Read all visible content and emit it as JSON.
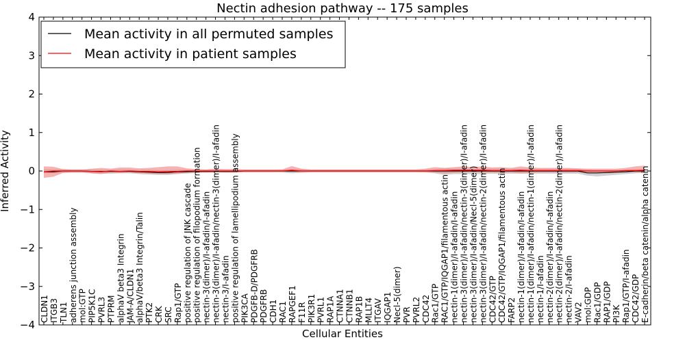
{
  "chart_data": {
    "type": "line",
    "title": "Nectin adhesion pathway -- 175 samples",
    "xlabel": "Cellular Entities",
    "ylabel": "Inferred Activity",
    "ylim": [
      -4,
      4
    ],
    "yticks": [
      -4,
      -3,
      -2,
      -1,
      0,
      1,
      2,
      3,
      4
    ],
    "ytick_labels": [
      "−4",
      "−3",
      "−2",
      "−1",
      "0",
      "1",
      "2",
      "3",
      "4"
    ],
    "grid": false,
    "legend_position": "top-left",
    "colors": {
      "permuted_line": "#000000",
      "permuted_band": "#b0b0b0",
      "patient_line": "#ff0000",
      "patient_band": "#f08080"
    },
    "categories": [
      "CLDN1",
      "ITGB3",
      "TLN1",
      "adherens junction assembly",
      "mol:GTP",
      "PIP5K1C",
      "PVRL3",
      "PTPRM",
      "alphaV beta3 Integrin",
      "JAM-A/CLDN1",
      "alphaV/beta3 Integrin/Talin",
      "PTK2",
      "CRK",
      "SRC",
      "Rap1/GTP",
      "positive regulation of JNK cascade",
      "positive regulation of filopodium formation",
      "nectin-3(dimer)/I-afadin/I-afadin",
      "nectin-3(dimer)/I-afadin/nectin-3(dimer)/I-afadin",
      "nectin-3/I-afadin",
      "positive regulation of lamellipodium assembly",
      "PIK3CA",
      "PDGFB-D/PDGFRB",
      "PDGFRB",
      "CDH1",
      "RAC1",
      "RAPGEF1",
      "F11R",
      "PIK3R1",
      "PVRL1",
      "RAP1A",
      "CTNNA1",
      "CTNNB1",
      "RAP1B",
      "MLLT4",
      "ITGAV",
      "IQGAP1",
      "Necl-5(dimer)",
      "PVR",
      "PVRL2",
      "CDC42",
      "Rac1/GTP",
      "RAC1/GTP/IQGAP1/filamentous actin",
      "nectin-1(dimer)/I-afadin/I-afadin",
      "nectin-3(dimer)/I-afadin/nectin-3(dimer)/I-afadin",
      "nectin-3(dimer)/I-afadin/Necl-5(dimer)",
      "nectin-3(dimer)/I-afadin/nectin-2(dimer)/I-afadin",
      "CDC42/GTP",
      "CDC42/GTP/IQGAP1/filamentous actin",
      "FARP2",
      "nectin-1(dimer)/I-afadin/I-afadin",
      "nectin-1(dimer)/I-afadin/nectin-1(dimer)/I-afadin",
      "nectin-1/I-afadin",
      "nectin-2(dimer)/I-afadin/I-afadin",
      "nectin-2(dimer)/I-afadin/nectin-2(dimer)/I-afadin",
      "nectin-2/I-afadin",
      "VAV2",
      "mol:GDP",
      "Rac1/GDP",
      "RAP1/GDP",
      "PI3K",
      "Rap1/GTP/I-afadin",
      "CDC42/GDP",
      "E-cadherin/beta catenin/alpha catenin"
    ],
    "series": [
      {
        "name": "Mean activity in all permuted samples",
        "color": "#000000",
        "values": [
          -0.02,
          -0.02,
          0,
          0,
          0,
          -0.01,
          -0.01,
          -0.01,
          -0.01,
          -0.01,
          -0.02,
          -0.03,
          -0.04,
          -0.04,
          -0.02,
          -0.02,
          -0.01,
          -0.01,
          -0.01,
          -0.01,
          -0.01,
          0,
          0,
          0,
          0,
          0,
          0,
          0,
          0,
          0,
          0,
          0,
          0,
          0,
          0,
          0,
          0,
          0,
          0,
          0,
          0,
          0,
          0,
          0,
          0,
          0,
          0,
          0,
          0,
          0,
          0,
          0,
          0,
          0,
          0,
          0,
          0,
          -0.05,
          -0.05,
          -0.04,
          -0.03,
          -0.02,
          0,
          0
        ],
        "lower": [
          -0.06,
          -0.06,
          -0.05,
          -0.05,
          -0.05,
          -0.06,
          -0.07,
          -0.07,
          -0.06,
          -0.06,
          -0.08,
          -0.09,
          -0.1,
          -0.1,
          -0.08,
          -0.07,
          -0.05,
          -0.05,
          -0.04,
          -0.05,
          -0.05,
          -0.04,
          -0.04,
          -0.04,
          -0.04,
          -0.04,
          -0.06,
          -0.05,
          -0.04,
          -0.04,
          -0.04,
          -0.04,
          -0.04,
          -0.04,
          -0.04,
          -0.04,
          -0.04,
          -0.04,
          -0.04,
          -0.04,
          -0.04,
          -0.06,
          -0.1,
          -0.08,
          -0.08,
          -0.08,
          -0.08,
          -0.07,
          -0.07,
          -0.07,
          -0.07,
          -0.07,
          -0.07,
          -0.07,
          -0.07,
          -0.07,
          -0.07,
          -0.12,
          -0.14,
          -0.12,
          -0.1,
          -0.08,
          -0.06,
          -0.04
        ],
        "upper": [
          0.04,
          0.04,
          0.05,
          0.05,
          0.05,
          0.04,
          0.03,
          0.03,
          0.04,
          0.04,
          0.03,
          0.03,
          0.02,
          0.02,
          0.03,
          0.03,
          0.04,
          0.04,
          0.04,
          0.04,
          0.04,
          0.04,
          0.04,
          0.04,
          0.04,
          0.04,
          0.05,
          0.05,
          0.04,
          0.04,
          0.04,
          0.04,
          0.04,
          0.04,
          0.04,
          0.04,
          0.04,
          0.04,
          0.04,
          0.04,
          0.04,
          0.05,
          0.07,
          0.06,
          0.06,
          0.06,
          0.06,
          0.06,
          0.06,
          0.06,
          0.06,
          0.06,
          0.06,
          0.06,
          0.06,
          0.06,
          0.06,
          0.04,
          0.03,
          0.03,
          0.03,
          0.03,
          0.04,
          0.04
        ]
      },
      {
        "name": "Mean activity in patient samples",
        "color": "#ff0000",
        "values": [
          -0.02,
          0,
          0,
          0,
          0,
          -0.01,
          -0.02,
          0,
          -0.01,
          0,
          -0.01,
          -0.01,
          -0.02,
          -0.01,
          -0.01,
          0,
          0,
          0,
          0,
          0,
          0,
          0,
          0,
          0,
          0,
          0,
          0.02,
          0,
          0,
          0,
          0,
          0,
          0,
          0,
          0,
          0,
          0,
          0,
          0,
          0,
          0,
          0.01,
          0.01,
          0.02,
          0.02,
          0.02,
          0.02,
          0.01,
          0.01,
          0.01,
          0.02,
          0.01,
          0.01,
          0.01,
          0.01,
          0.01,
          0.01,
          0,
          0,
          0,
          0,
          0.01,
          0.01,
          0.02
        ],
        "lower": [
          -0.18,
          -0.15,
          -0.05,
          -0.03,
          -0.03,
          -0.06,
          -0.08,
          -0.04,
          -0.05,
          -0.03,
          -0.06,
          -0.07,
          -0.08,
          -0.08,
          -0.07,
          -0.03,
          -0.03,
          -0.03,
          -0.03,
          -0.03,
          -0.03,
          -0.02,
          -0.02,
          -0.02,
          -0.02,
          -0.02,
          -0.03,
          -0.03,
          -0.02,
          -0.02,
          -0.02,
          -0.02,
          -0.02,
          -0.02,
          -0.02,
          -0.02,
          -0.02,
          -0.02,
          -0.02,
          -0.02,
          -0.03,
          -0.04,
          -0.06,
          -0.05,
          -0.04,
          -0.03,
          -0.04,
          -0.04,
          -0.05,
          -0.04,
          -0.06,
          -0.05,
          -0.04,
          -0.04,
          -0.04,
          -0.04,
          -0.04,
          -0.03,
          -0.03,
          -0.03,
          -0.03,
          -0.03,
          -0.04,
          -0.05
        ],
        "upper": [
          0.12,
          0.11,
          0.05,
          0.03,
          0.03,
          0.06,
          0.08,
          0.06,
          0.09,
          0.09,
          0.07,
          0.08,
          0.1,
          0.12,
          0.12,
          0.07,
          0.05,
          0.04,
          0.06,
          0.05,
          0.05,
          0.04,
          0.04,
          0.04,
          0.04,
          0.04,
          0.13,
          0.06,
          0.04,
          0.04,
          0.04,
          0.04,
          0.04,
          0.04,
          0.04,
          0.04,
          0.04,
          0.04,
          0.04,
          0.04,
          0.06,
          0.1,
          0.08,
          0.1,
          0.12,
          0.1,
          0.12,
          0.09,
          0.1,
          0.08,
          0.12,
          0.09,
          0.08,
          0.08,
          0.08,
          0.08,
          0.07,
          0.06,
          0.06,
          0.06,
          0.06,
          0.08,
          0.12,
          0.14
        ]
      }
    ]
  }
}
